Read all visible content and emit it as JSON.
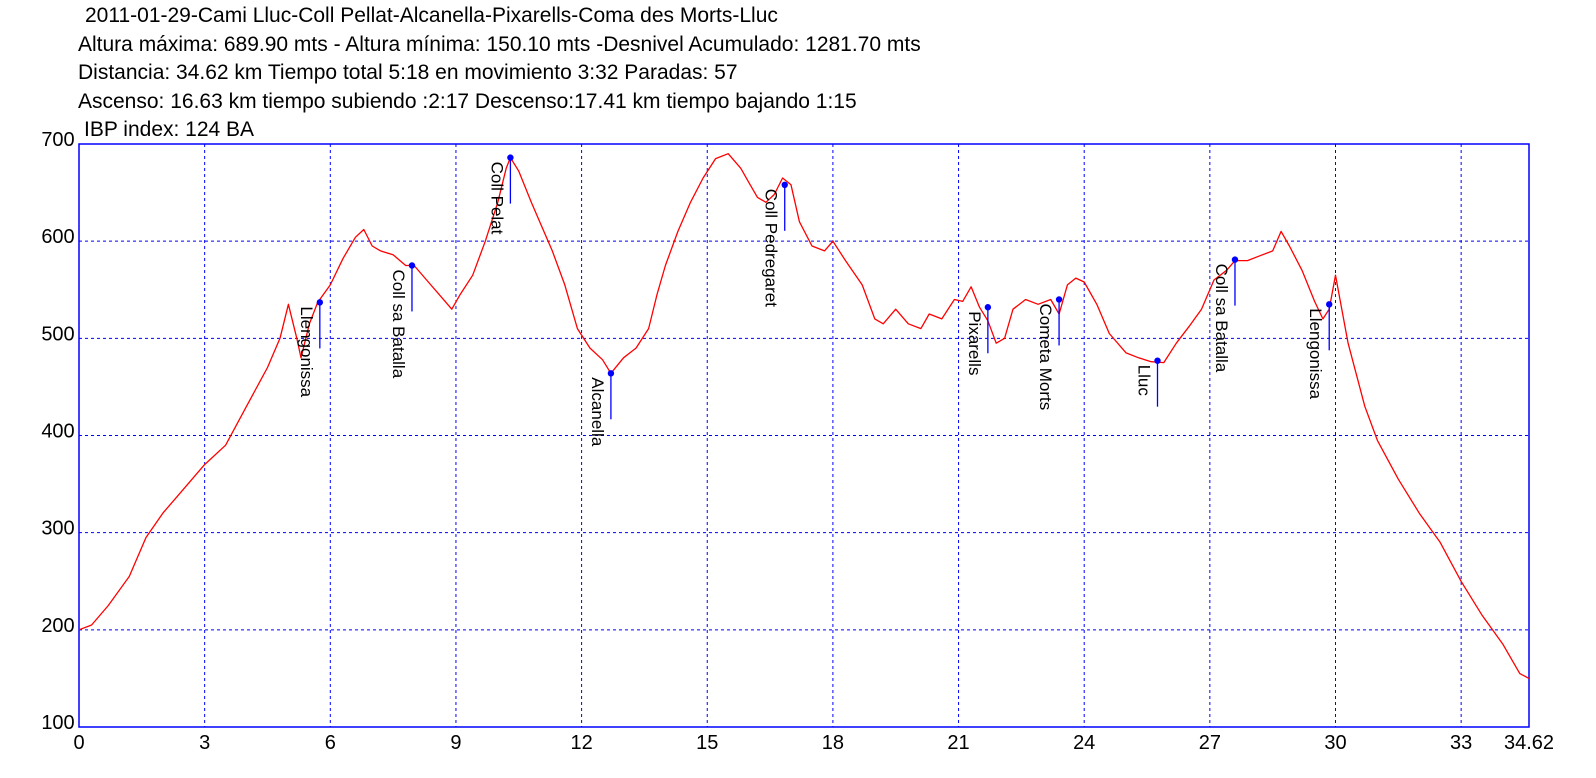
{
  "header": {
    "title": "2011-01-29-Cami Lluc-Coll Pellat-Alcanella-Pixarells-Coma des Morts-Lluc",
    "line2": "Altura máxima: 689.90 mts - Altura mínima: 150.10 mts -Desnivel Acumulado: 1281.70 mts",
    "line3": "Distancia: 34.62 km  Tiempo total 5:18  en movimiento 3:32 Paradas: 57",
    "line4": "Ascenso: 16.63 km  tiempo subiendo :2:17  Descenso:17.41 km tiempo bajando 1:15",
    "line5": "IBP index: 124 BA"
  },
  "chart_data": {
    "type": "line",
    "xlim": [
      0,
      34.62
    ],
    "ylim": [
      100,
      700
    ],
    "x_ticks": [
      0,
      3,
      6,
      9,
      12,
      15,
      18,
      21,
      24,
      27,
      30,
      33,
      34.62
    ],
    "x_tick_labels": [
      "0",
      "3",
      "6",
      "9",
      "12",
      "15",
      "18",
      "21",
      "24",
      "27",
      "30",
      "33",
      "34.62"
    ],
    "y_ticks": [
      100,
      200,
      300,
      400,
      500,
      600,
      700
    ],
    "y_tick_labels": [
      "100",
      "200",
      "300",
      "400",
      "500",
      "600",
      "700"
    ],
    "grid": true,
    "colors": {
      "line": "#ff0000",
      "frame": "#0000ff",
      "grid": "#0000ff",
      "waypoint": "#0000ff"
    },
    "series": [
      {
        "x": [
          0,
          0.3,
          0.7,
          1.2,
          1.6,
          2.0,
          2.5,
          3.0,
          3.5,
          4.0,
          4.5,
          4.8,
          5.0,
          5.2,
          5.3,
          5.5,
          5.7,
          6.0,
          6.3,
          6.6,
          6.8,
          7.0,
          7.2,
          7.5,
          7.8,
          8.0,
          8.3,
          8.6,
          8.9,
          9.1,
          9.4,
          9.7,
          10.0,
          10.2,
          10.3,
          10.5,
          10.8,
          11.0,
          11.3,
          11.6,
          11.9,
          12.2,
          12.5,
          12.7,
          13.0,
          13.3,
          13.6,
          13.8,
          14.0,
          14.3,
          14.6,
          14.9,
          15.2,
          15.5,
          15.8,
          16.0,
          16.2,
          16.4,
          16.6,
          16.8,
          17.0,
          17.2,
          17.5,
          17.8,
          18.0,
          18.3,
          18.7,
          19.0,
          19.2,
          19.5,
          19.8,
          20.1,
          20.3,
          20.6,
          20.9,
          21.1,
          21.3,
          21.5,
          21.7,
          21.9,
          22.1,
          22.3,
          22.6,
          22.9,
          23.2,
          23.4,
          23.6,
          23.8,
          24.0,
          24.3,
          24.6,
          25.0,
          25.3,
          25.6,
          25.9,
          26.2,
          26.5,
          26.8,
          27.1,
          27.4,
          27.6,
          27.9,
          28.2,
          28.5,
          28.7,
          28.9,
          29.2,
          29.5,
          29.7,
          29.85,
          30.0,
          30.3,
          30.7,
          31.0,
          31.5,
          32.0,
          32.5,
          33.0,
          33.5,
          34.0,
          34.4,
          34.62
        ],
        "y": [
          200,
          205,
          225,
          255,
          295,
          320,
          345,
          370,
          390,
          430,
          470,
          500,
          535,
          500,
          480,
          515,
          537,
          555,
          582,
          604,
          612,
          595,
          590,
          586,
          575,
          575,
          560,
          545,
          530,
          545,
          565,
          600,
          640,
          675,
          686,
          672,
          640,
          620,
          590,
          555,
          510,
          490,
          478,
          464,
          480,
          490,
          510,
          545,
          575,
          610,
          640,
          665,
          685,
          690,
          675,
          660,
          645,
          640,
          648,
          665,
          658,
          620,
          595,
          590,
          600,
          580,
          555,
          520,
          515,
          530,
          515,
          510,
          525,
          520,
          540,
          538,
          553,
          532,
          518,
          495,
          500,
          530,
          540,
          535,
          540,
          525,
          555,
          562,
          558,
          535,
          505,
          485,
          480,
          476,
          475,
          495,
          512,
          530,
          560,
          570,
          580,
          580,
          585,
          590,
          610,
          595,
          570,
          538,
          520,
          530,
          565,
          495,
          430,
          395,
          355,
          320,
          290,
          250,
          215,
          185,
          155,
          150
        ]
      }
    ],
    "waypoints": [
      {
        "name": "Llengonissa",
        "x": 5.75,
        "y": 537
      },
      {
        "name": "Coll sa Batalla",
        "x": 7.95,
        "y": 575
      },
      {
        "name": "Coll Pelat",
        "x": 10.3,
        "y": 686
      },
      {
        "name": "Alcanella",
        "x": 12.7,
        "y": 464
      },
      {
        "name": "Coll Pedregaret",
        "x": 16.85,
        "y": 658
      },
      {
        "name": "Pixarells",
        "x": 21.7,
        "y": 532
      },
      {
        "name": "Cometa Morts",
        "x": 23.4,
        "y": 540
      },
      {
        "name": "Lluc",
        "x": 25.75,
        "y": 477
      },
      {
        "name": "Coll sa Batalla",
        "x": 27.6,
        "y": 581
      },
      {
        "name": "Llengonissa",
        "x": 29.85,
        "y": 535
      }
    ]
  }
}
